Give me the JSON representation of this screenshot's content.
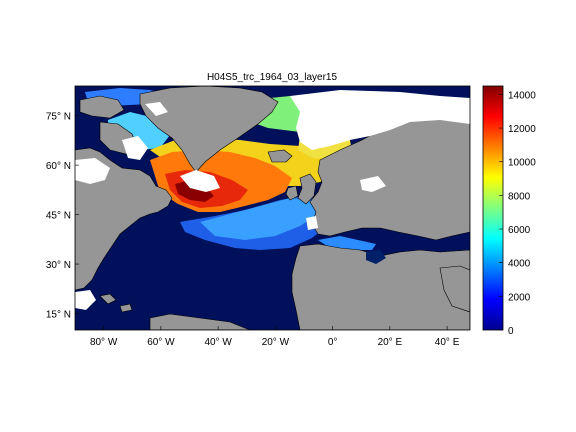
{
  "title": "H04S5_trc_1964_03_layer15",
  "map": {
    "lon_ticks": [
      {
        "label": "80° W",
        "lon": -80
      },
      {
        "label": "60° W",
        "lon": -60
      },
      {
        "label": "40° W",
        "lon": -40
      },
      {
        "label": "20° W",
        "lon": -20
      },
      {
        "label": "0°",
        "lon": 0
      },
      {
        "label": "20° E",
        "lon": 20
      },
      {
        "label": "40° E",
        "lon": 40
      }
    ],
    "lat_ticks": [
      {
        "label": "75° N",
        "lat": 75
      },
      {
        "label": "60° N",
        "lat": 60
      },
      {
        "label": "45° N",
        "lat": 45
      },
      {
        "label": "30° N",
        "lat": 30
      },
      {
        "label": "15° N",
        "lat": 15
      }
    ],
    "extent": {
      "lon": [
        -90,
        48
      ],
      "lat": [
        10,
        84
      ]
    },
    "land_color": "#969696",
    "nodata_color": "#ffffff"
  },
  "colorbar": {
    "ticks": [
      "0",
      "2000",
      "4000",
      "6000",
      "8000",
      "10000",
      "12000",
      "14000"
    ],
    "min": 0,
    "max": 14500,
    "colormap": "jet"
  }
}
